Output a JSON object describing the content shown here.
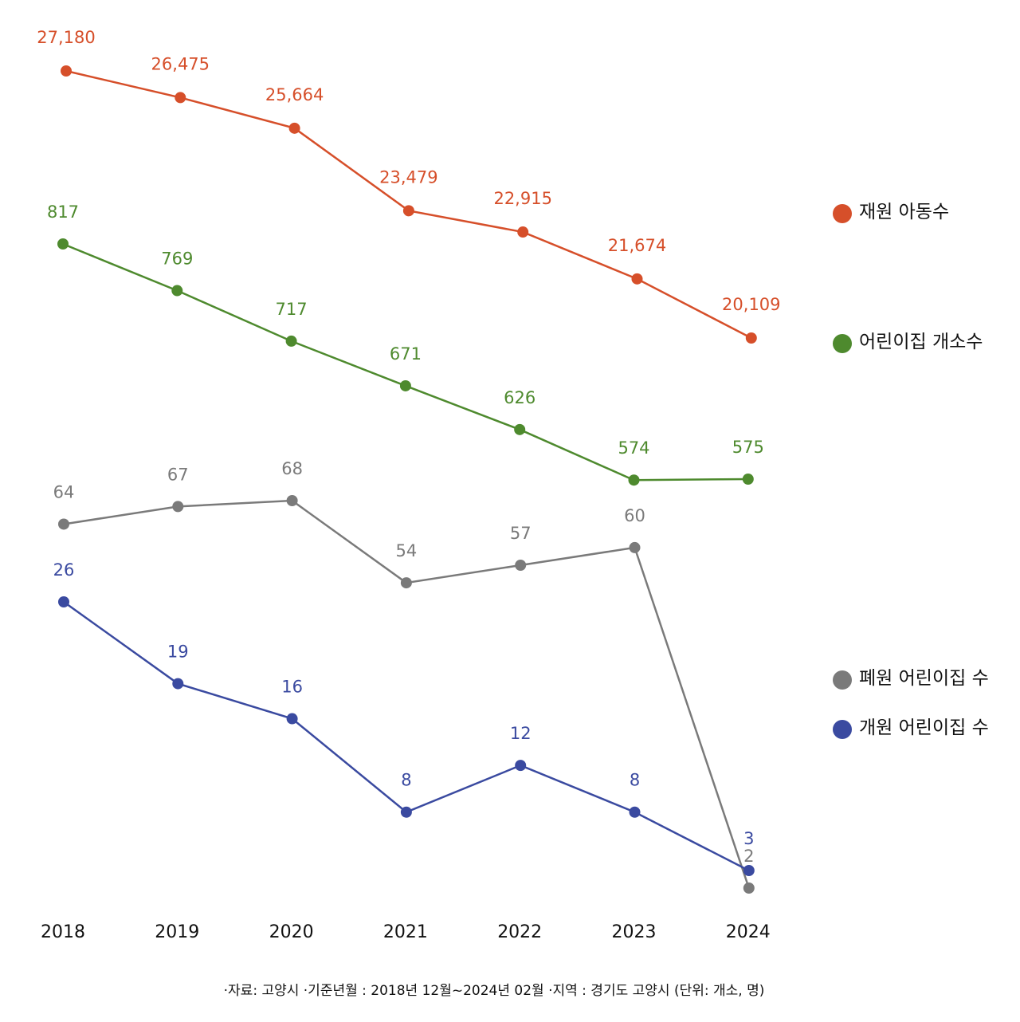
{
  "chart_data": {
    "type": "line",
    "title": "",
    "categories": [
      "2018",
      "2019",
      "2020",
      "2021",
      "2022",
      "2023",
      "2024"
    ],
    "series": [
      {
        "name": "재원 아동수",
        "color": "#d64f2a",
        "values": [
          27180,
          26475,
          25664,
          23479,
          22915,
          21674,
          20109
        ],
        "labels": [
          "27,180",
          "26,475",
          "25,664",
          "23,479",
          "22,915",
          "21,674",
          "20,109"
        ]
      },
      {
        "name": "어린이집 개소수",
        "color": "#4e8a2e",
        "values": [
          817,
          769,
          717,
          671,
          626,
          574,
          575
        ],
        "labels": [
          "817",
          "769",
          "717",
          "671",
          "626",
          "574",
          "575"
        ]
      },
      {
        "name": "폐원 어린이집 수",
        "color": "#7a7a7a",
        "values": [
          64,
          67,
          68,
          54,
          57,
          60,
          2
        ],
        "labels": [
          "64",
          "67",
          "68",
          "54",
          "57",
          "60",
          "2"
        ]
      },
      {
        "name": "개원 어린이집 수",
        "color": "#3a4aa0",
        "values": [
          26,
          19,
          16,
          8,
          12,
          8,
          3
        ],
        "labels": [
          "26",
          "19",
          "16",
          "8",
          "12",
          "8",
          "3"
        ]
      }
    ],
    "legend_placement": "right",
    "grid": false,
    "y_axis_shown": false
  },
  "footer_note": "·자료: 고양시 ·기준년월  : 2018년 12월~2024년 02월  ·지역 : 경기도 고양시 (단위: 개소, 명)"
}
